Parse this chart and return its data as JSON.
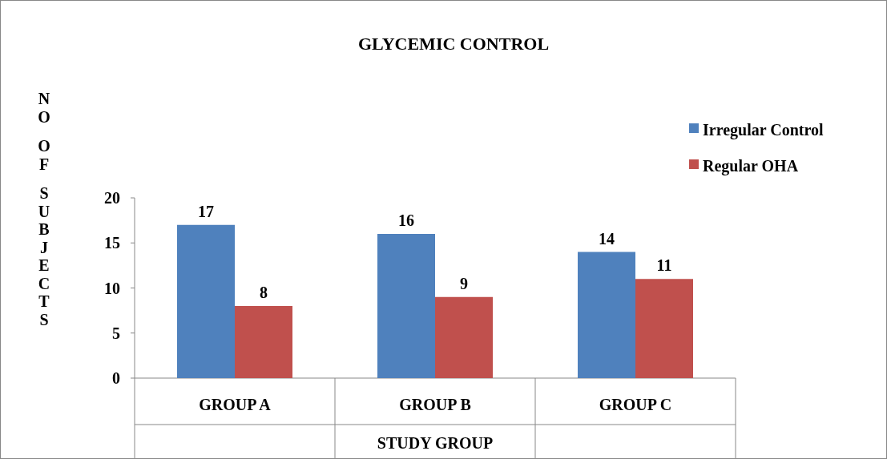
{
  "chart_data": {
    "type": "bar",
    "title": "GLYCEMIC CONTROL",
    "xlabel": "STUDY GROUP",
    "ylabel": "NO OF SUBJECTS",
    "categories": [
      "GROUP A",
      "GROUP B",
      "GROUP C"
    ],
    "series": [
      {
        "name": "Irregular Control",
        "color": "#4f81bd",
        "values": [
          17,
          16,
          14
        ]
      },
      {
        "name": "Regular OHA",
        "color": "#c0504d",
        "values": [
          8,
          9,
          11
        ]
      }
    ],
    "ylim": [
      0,
      20
    ],
    "yticks": [
      0,
      5,
      10,
      15,
      20
    ],
    "data_labels": true,
    "legend": "top right",
    "grid": false
  }
}
